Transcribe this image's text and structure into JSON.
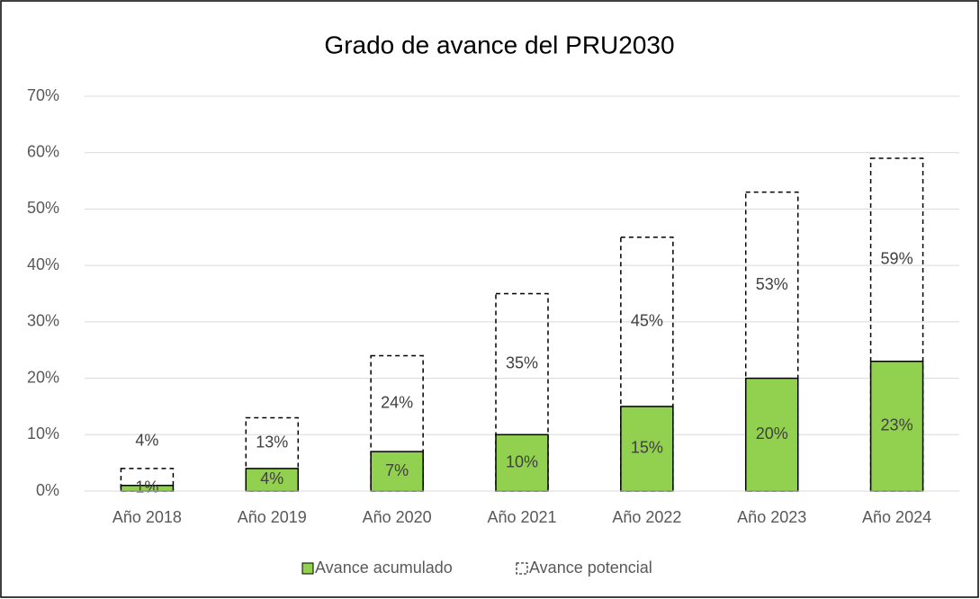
{
  "chart_data": {
    "type": "bar",
    "title": "Grado de avance del PRU2030",
    "categories": [
      "Año 2018",
      "Año 2019",
      "Año 2020",
      "Año 2021",
      "Año 2022",
      "Año 2023",
      "Año 2024"
    ],
    "series": [
      {
        "name": "Avance acumulado",
        "color": "#92d050",
        "values": [
          1,
          4,
          7,
          10,
          15,
          20,
          23
        ],
        "value_labels": [
          "1%",
          "4%",
          "7%",
          "10%",
          "15%",
          "20%",
          "23%"
        ]
      },
      {
        "name": "Avance potencial",
        "color": "#000000",
        "line_style": "dashed",
        "values": [
          4,
          13,
          24,
          35,
          45,
          53,
          59
        ],
        "value_labels": [
          "4%",
          "13%",
          "24%",
          "35%",
          "45%",
          "53%",
          "59%"
        ]
      }
    ],
    "overlap": true,
    "ylim": [
      0,
      70
    ],
    "yticks": [
      {
        "value": 0,
        "label": "0%"
      },
      {
        "value": 10,
        "label": "10%"
      },
      {
        "value": 20,
        "label": "20%"
      },
      {
        "value": 30,
        "label": "30%"
      },
      {
        "value": 40,
        "label": "40%"
      },
      {
        "value": 50,
        "label": "50%"
      },
      {
        "value": 60,
        "label": "60%"
      },
      {
        "value": 70,
        "label": "70%"
      }
    ],
    "grid": true,
    "legend": "bottom"
  }
}
